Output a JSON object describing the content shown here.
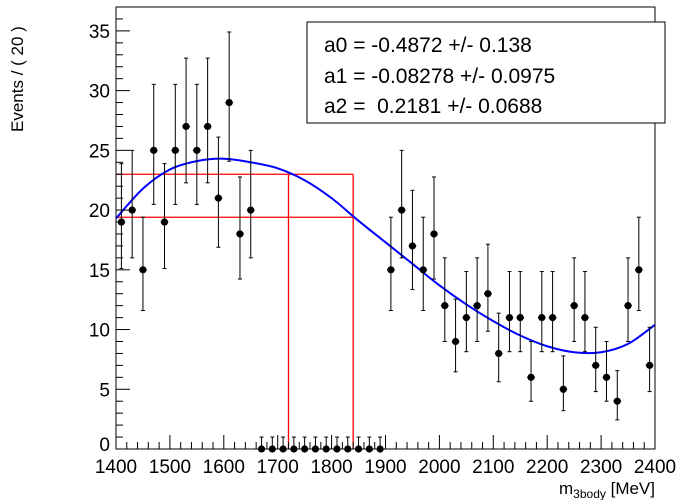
{
  "chart_data": {
    "type": "scatter",
    "title": "",
    "xlabel_main": "m",
    "xlabel_sub": "3body",
    "xlabel_unit": " [MeV]",
    "ylabel": "Events / ( 20 )",
    "xlim": [
      1400,
      2400
    ],
    "ylim": [
      0,
      37
    ],
    "xticks": [
      1400,
      1500,
      1600,
      1700,
      1800,
      1900,
      2000,
      2100,
      2200,
      2300,
      2400
    ],
    "yticks": [
      0,
      5,
      10,
      15,
      20,
      25,
      30,
      35
    ],
    "bin_width": 20,
    "x": [
      1410,
      1430,
      1450,
      1470,
      1490,
      1510,
      1530,
      1550,
      1570,
      1590,
      1610,
      1630,
      1650,
      1670,
      1690,
      1710,
      1730,
      1750,
      1770,
      1790,
      1810,
      1830,
      1850,
      1870,
      1890,
      1910,
      1930,
      1950,
      1970,
      1990,
      2010,
      2030,
      2050,
      2070,
      2090,
      2110,
      2130,
      2150,
      2170,
      2190,
      2210,
      2230,
      2250,
      2270,
      2290,
      2310,
      2330,
      2350,
      2370,
      2390
    ],
    "values": [
      19,
      20,
      15,
      25,
      19,
      25,
      27,
      25,
      27,
      21,
      29,
      18,
      20,
      0,
      0,
      0,
      0,
      0,
      0,
      0,
      0,
      0,
      0,
      0,
      0,
      15,
      20,
      17,
      15,
      18,
      12,
      9,
      11,
      12,
      13,
      8,
      11,
      11,
      6,
      11,
      11,
      5,
      12,
      11,
      7,
      6,
      4,
      12,
      15,
      7
    ],
    "fit_curve": {
      "color": "#0000ff",
      "x": [
        1400,
        1450,
        1500,
        1550,
        1600,
        1650,
        1700,
        1750,
        1800,
        1850,
        1900,
        1950,
        2000,
        2050,
        2100,
        2150,
        2200,
        2250,
        2300,
        2350,
        2400
      ],
      "y": [
        19.3,
        21.8,
        23.4,
        24.1,
        24.3,
        24.0,
        23.5,
        22.5,
        21.0,
        19.1,
        17.3,
        15.5,
        13.7,
        12.1,
        10.7,
        9.5,
        8.6,
        8.1,
        8.1,
        8.8,
        10.4
      ]
    },
    "red_lines": {
      "color": "#ff0000",
      "y_levels": [
        23.0,
        19.4
      ],
      "x_range": [
        1400,
        1840
      ],
      "x_levels": [
        1720,
        1840
      ]
    },
    "legend": {
      "placement": "top-right",
      "lines": [
        "a0 = -0.4872 +/- 0.138",
        "a1 = -0.08278 +/- 0.0975",
        "a2 =  0.2181 +/- 0.0688"
      ]
    }
  }
}
